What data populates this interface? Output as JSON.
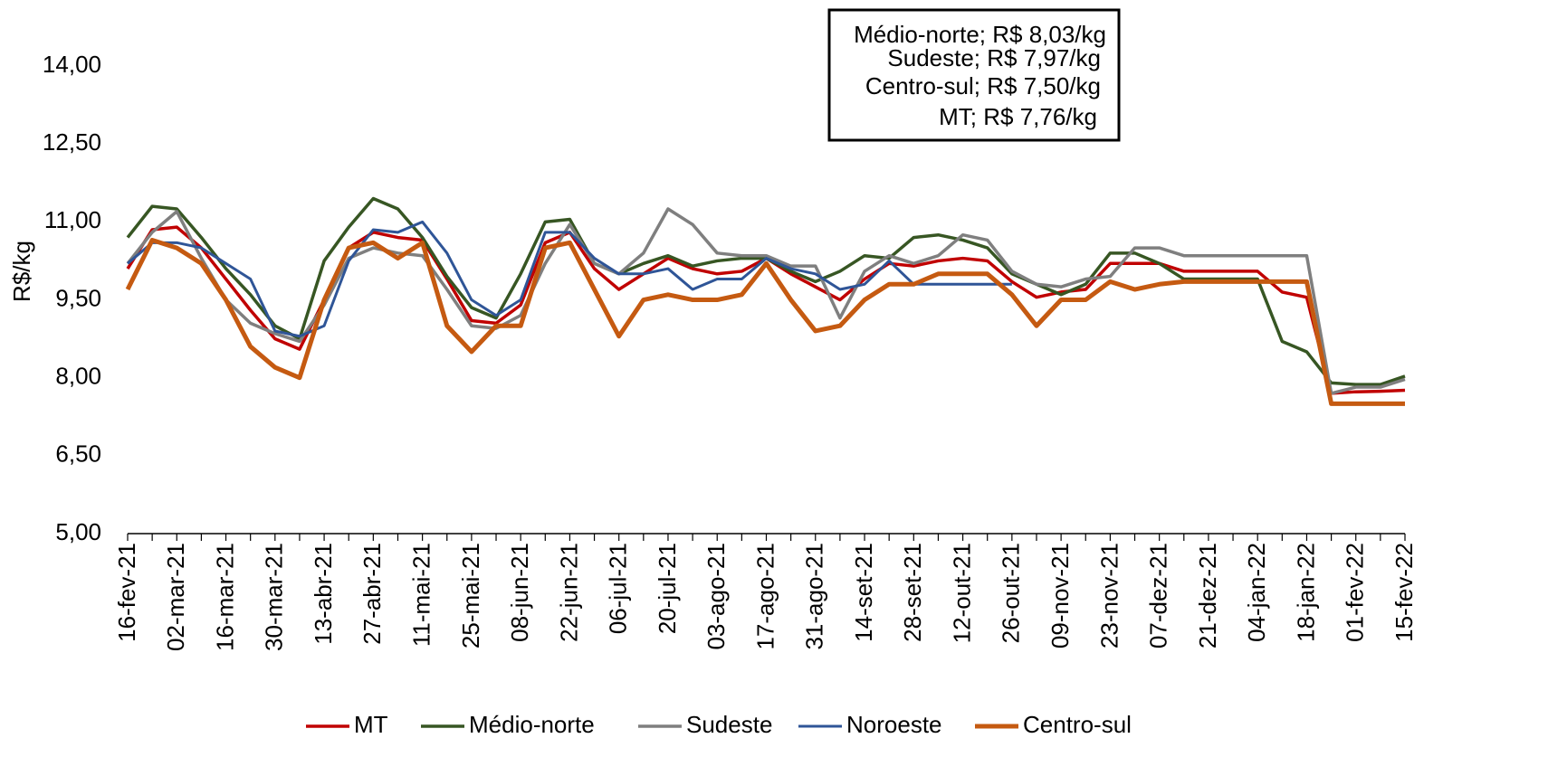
{
  "chart_data": {
    "type": "line",
    "y_label": "R$/kg",
    "annotations": [
      "Médio-norte; R$ 8,03/kg",
      "Sudeste; R$ 7,97/kg",
      "Centro-sul; R$ 7,50/kg",
      "MT; R$ 7,76/kg"
    ],
    "categories": [
      "16-fev-21",
      null,
      "02-mar-21",
      null,
      "16-mar-21",
      null,
      "30-mar-21",
      null,
      "13-abr-21",
      null,
      "27-abr-21",
      null,
      "11-mai-21",
      null,
      "25-mai-21",
      null,
      "08-jun-21",
      null,
      "22-jun-21",
      null,
      "06-jul-21",
      null,
      "20-jul-21",
      null,
      "03-ago-21",
      null,
      "17-ago-21",
      null,
      "31-ago-21",
      null,
      "14-set-21",
      null,
      "28-set-21",
      null,
      "12-out-21",
      null,
      "26-out-21",
      null,
      "09-nov-21",
      null,
      "23-nov-21",
      null,
      "07-dez-21",
      null,
      "21-dez-21",
      null,
      "04-jan-22",
      null,
      "18-jan-22",
      null,
      "01-fev-22",
      null,
      "15-fev-22"
    ],
    "series": [
      {
        "name": "MT",
        "color": "#c00000",
        "width": 3.5,
        "values": [
          10.1,
          10.85,
          10.9,
          10.5,
          9.9,
          9.3,
          8.75,
          8.55,
          9.5,
          10.5,
          10.8,
          10.7,
          10.65,
          9.9,
          9.1,
          9.05,
          9.4,
          10.6,
          10.8,
          10.1,
          9.7,
          10.0,
          10.3,
          10.1,
          10.0,
          10.05,
          10.3,
          10.0,
          9.75,
          9.5,
          9.9,
          10.2,
          10.15,
          10.25,
          10.3,
          10.25,
          9.85,
          9.55,
          9.65,
          9.7,
          10.2,
          10.2,
          10.2,
          10.05,
          10.05,
          10.05,
          10.05,
          9.65,
          9.55,
          7.7,
          7.73,
          7.74,
          7.76
        ]
      },
      {
        "name": "Médio-norte",
        "color": "#375623",
        "width": 3.5,
        "values": [
          10.7,
          11.3,
          11.25,
          10.7,
          10.1,
          9.6,
          9.0,
          8.75,
          10.25,
          10.9,
          11.45,
          11.25,
          10.7,
          9.95,
          9.35,
          9.15,
          10.0,
          11.0,
          11.05,
          10.2,
          10.0,
          10.2,
          10.35,
          10.15,
          10.25,
          10.3,
          10.3,
          10.05,
          9.85,
          10.05,
          10.35,
          10.3,
          10.7,
          10.75,
          10.65,
          10.5,
          10.0,
          9.8,
          9.6,
          9.8,
          10.4,
          10.4,
          10.2,
          9.9,
          9.9,
          9.9,
          9.9,
          8.7,
          8.5,
          7.9,
          7.87,
          7.87,
          8.03
        ]
      },
      {
        "name": "Sudeste",
        "color": "#7f7f7f",
        "width": 3.5,
        "values": [
          10.2,
          10.8,
          11.2,
          10.3,
          9.5,
          9.05,
          8.85,
          8.7,
          9.4,
          10.3,
          10.5,
          10.4,
          10.35,
          9.7,
          9.0,
          8.95,
          9.2,
          10.2,
          10.95,
          10.2,
          10.0,
          10.4,
          11.25,
          10.95,
          10.4,
          10.35,
          10.35,
          10.15,
          10.15,
          9.15,
          10.05,
          10.35,
          10.2,
          10.35,
          10.75,
          10.65,
          10.05,
          9.8,
          9.75,
          9.9,
          9.95,
          10.5,
          10.5,
          10.35,
          10.35,
          10.35,
          10.35,
          10.35,
          10.35,
          7.7,
          7.82,
          7.82,
          7.97
        ]
      },
      {
        "name": "Noroeste",
        "color": "#2f5597",
        "width": 3,
        "values": [
          10.2,
          10.6,
          10.6,
          10.5,
          10.2,
          9.9,
          8.9,
          8.8,
          9.0,
          10.25,
          10.85,
          10.8,
          11.0,
          10.4,
          9.5,
          9.2,
          9.5,
          10.8,
          10.8,
          10.3,
          10.0,
          10.0,
          10.1,
          9.7,
          9.9,
          9.9,
          10.3,
          10.1,
          10.0,
          9.7,
          9.8,
          10.25,
          9.8,
          9.8,
          9.8,
          9.8,
          9.8,
          null,
          null,
          null,
          null,
          null,
          null,
          null,
          null,
          null,
          null,
          null,
          null,
          null,
          null,
          null,
          null
        ]
      },
      {
        "name": "Centro-sul",
        "color": "#c55a11",
        "width": 5,
        "values": [
          9.7,
          10.65,
          10.5,
          10.2,
          9.5,
          8.6,
          8.2,
          8.0,
          9.5,
          10.5,
          10.6,
          10.3,
          10.6,
          9.0,
          8.5,
          9.0,
          9.0,
          10.5,
          10.6,
          9.7,
          8.8,
          9.5,
          9.6,
          9.5,
          9.5,
          9.6,
          10.2,
          9.5,
          8.9,
          9.0,
          9.5,
          9.8,
          9.8,
          10.0,
          10.0,
          10.0,
          9.6,
          9.0,
          9.5,
          9.5,
          9.85,
          9.7,
          9.8,
          9.85,
          9.85,
          9.85,
          9.85,
          9.85,
          9.85,
          7.5,
          7.5,
          7.5,
          7.5
        ]
      }
    ],
    "ylim": [
      5,
      15
    ],
    "yticks": [
      {
        "value": 5,
        "label": "5,00"
      },
      {
        "value": 6.5,
        "label": "6,50"
      },
      {
        "value": 8,
        "label": "8,00"
      },
      {
        "value": 9.5,
        "label": "9,50"
      },
      {
        "value": 11,
        "label": "11,00"
      },
      {
        "value": 12.5,
        "label": "12,50"
      },
      {
        "value": 14,
        "label": "14,00"
      }
    ],
    "grid": false,
    "legend": "bottom"
  }
}
